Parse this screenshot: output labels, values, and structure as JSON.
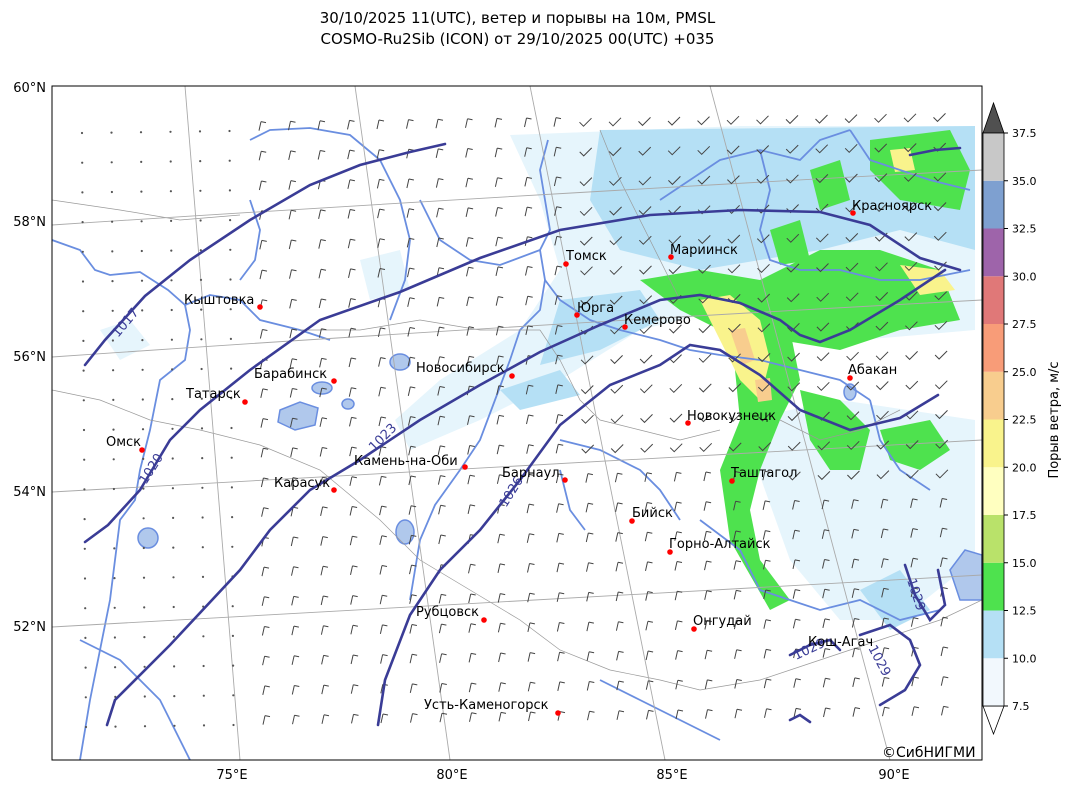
{
  "title": {
    "line1": "30/10/2025 11(UTC), ветер и порывы на 10м, PMSL",
    "line2": "COSMO-Ru2Sib (ICON) от 29/10/2025 00(UTC) +035"
  },
  "axes": {
    "lat_labels": [
      "60°N",
      "58°N",
      "56°N",
      "54°N",
      "52°N"
    ],
    "lon_labels": [
      "75°E",
      "80°E",
      "85°E",
      "90°E"
    ]
  },
  "colorbar": {
    "label": "Порыв ветра, м/с",
    "ticks": [
      "7.5",
      "10.0",
      "12.5",
      "15.0",
      "17.5",
      "20.0",
      "22.5",
      "25.0",
      "27.5",
      "30.0",
      "32.5",
      "35.0",
      "37.5"
    ],
    "colors": [
      "#f2f8fd",
      "#b5e0f5",
      "#4ee24e",
      "#b9e26a",
      "#ffffc0",
      "#f9f38c",
      "#f8cd8e",
      "#f89c78",
      "#e07878",
      "#9e64aa",
      "#7ea0d0",
      "#c8c8c8"
    ],
    "over_color": "#505050",
    "under_color": "#ffffff"
  },
  "isobars": [
    {
      "label": "1017"
    },
    {
      "label": "1020"
    },
    {
      "label": "1023"
    },
    {
      "label": "1026"
    },
    {
      "label": "1029"
    },
    {
      "label": "1029"
    },
    {
      "label": "1029"
    }
  ],
  "cities": [
    {
      "name": "Красноярск"
    },
    {
      "name": "Мариинск"
    },
    {
      "name": "Томск"
    },
    {
      "name": "Кыштовка"
    },
    {
      "name": "Юрга"
    },
    {
      "name": "Кемерово"
    },
    {
      "name": "Барабинск"
    },
    {
      "name": "Новосибирск"
    },
    {
      "name": "Абакан"
    },
    {
      "name": "Татарск"
    },
    {
      "name": "Новокузнецк"
    },
    {
      "name": "Омск"
    },
    {
      "name": "Камень-на-Оби"
    },
    {
      "name": "Барнаул"
    },
    {
      "name": "Таштагол"
    },
    {
      "name": "Карасук"
    },
    {
      "name": "Бийск"
    },
    {
      "name": "Горно-Алтайск"
    },
    {
      "name": "Рубцовск"
    },
    {
      "name": "Онгудай"
    },
    {
      "name": "Кош-Агач"
    },
    {
      "name": "Усть-Каменогорск"
    }
  ],
  "copyright": "©СибНИГМИ",
  "colors": {
    "isobar": "#3a3c96",
    "river": "#6a8ee0",
    "city_marker": "#ff0000",
    "grid": "#aaaaaa"
  }
}
